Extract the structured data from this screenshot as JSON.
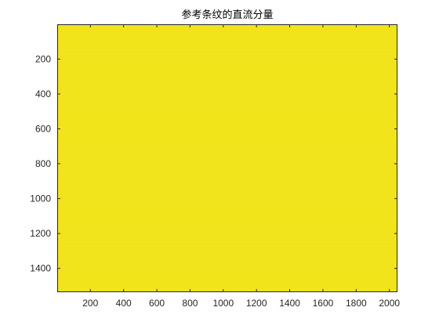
{
  "chart_data": {
    "type": "heatmap",
    "title": "参考条纹的直流分量",
    "xlabel": "",
    "ylabel": "",
    "xlim": [
      0.5,
      2048.5
    ],
    "ylim": [
      0.5,
      1536.5
    ],
    "y_reversed": true,
    "x_ticks": [
      200,
      400,
      600,
      800,
      1000,
      1200,
      1400,
      1600,
      1800,
      2000
    ],
    "y_ticks": [
      200,
      400,
      600,
      800,
      1000,
      1200,
      1400
    ],
    "x_tick_labels": [
      "200",
      "400",
      "600",
      "800",
      "1000",
      "1200",
      "1400",
      "1600",
      "1800",
      "2000"
    ],
    "y_tick_labels": [
      "200",
      "400",
      "600",
      "800",
      "1000",
      "1200",
      "1400"
    ],
    "image_size": {
      "cols": 2048,
      "rows": 1536
    },
    "fill_description": "near-uniform yellow with faint horizontal banding",
    "base_color": "#f2e41b",
    "band_color": "#ece020",
    "grid": false,
    "legend": "none"
  }
}
